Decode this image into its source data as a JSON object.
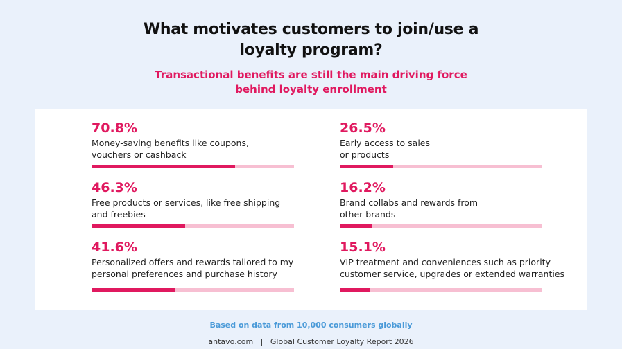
{
  "title_line1": "What motivates customers to join/use a",
  "title_line2": "loyalty program?",
  "subtitle_line1": "Transactional benefits are still the main driving force",
  "subtitle_line2": "behind loyalty enrollment",
  "colors": {
    "accent": "#e0195f",
    "track": "#f7bfd2",
    "note": "#4a9ad8",
    "background": "#eaf1fb"
  },
  "chart_data": {
    "type": "bar",
    "items": [
      {
        "value": 70.8,
        "label": "70.8%",
        "desc": [
          "Money-saving benefits like coupons,",
          "vouchers or cashback"
        ]
      },
      {
        "value": 46.3,
        "label": "46.3%",
        "desc": [
          "Free products or services, like free shipping",
          "and freebies"
        ]
      },
      {
        "value": 41.6,
        "label": "41.6%",
        "desc": [
          "Personalized offers and rewards tailored to my",
          "personal preferences and purchase history"
        ]
      },
      {
        "value": 26.5,
        "label": "26.5%",
        "desc": [
          "Early access to sales",
          "or products"
        ]
      },
      {
        "value": 16.2,
        "label": "16.2%",
        "desc": [
          "Brand collabs and rewards from",
          "other brands"
        ]
      },
      {
        "value": 15.1,
        "label": "15.1%",
        "desc": [
          "VIP treatment and conveniences such as priority",
          "customer service, upgrades or extended warranties"
        ]
      }
    ],
    "xlim": [
      0,
      100
    ]
  },
  "note": "Based on data from 10,000 consumers globally",
  "footer": "antavo.com   |   Global Customer Loyalty Report 2026"
}
